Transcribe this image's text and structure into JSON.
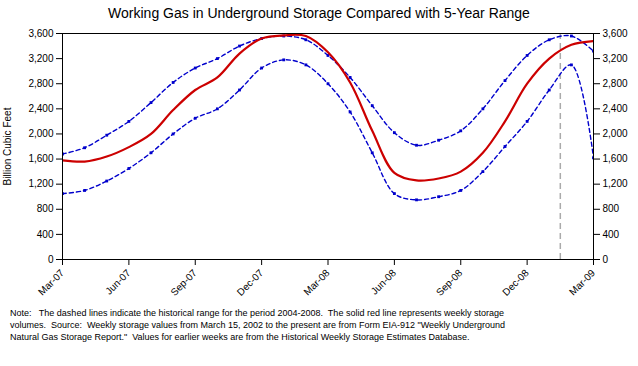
{
  "chart_data": {
    "type": "line",
    "title": "Working Gas in Underground Storage Compared with 5-Year Range",
    "y_label": "Billion Cubic Feet",
    "x": [
      0,
      1,
      2,
      3,
      4,
      5,
      6,
      7,
      8,
      9,
      10,
      11,
      12,
      13,
      14,
      15,
      16,
      17,
      18,
      19,
      20,
      21,
      22,
      23,
      24
    ],
    "xlim": [
      0,
      24
    ],
    "xticks": [
      {
        "value": 0,
        "label": "Mar-07"
      },
      {
        "value": 3,
        "label": "Jun-07"
      },
      {
        "value": 6,
        "label": "Sep-07"
      },
      {
        "value": 9,
        "label": "Dec-07"
      },
      {
        "value": 12,
        "label": "Mar-08"
      },
      {
        "value": 15,
        "label": "Jun-08"
      },
      {
        "value": 18,
        "label": "Sep-08"
      },
      {
        "value": 21,
        "label": "Dec-08"
      },
      {
        "value": 24,
        "label": "Mar-09"
      }
    ],
    "ylim": [
      0,
      3600
    ],
    "yticks": [
      0,
      400,
      800,
      {
        "value": 1200,
        "label": "1,200"
      },
      {
        "value": 1600,
        "label": "1,600"
      },
      {
        "value": 2000,
        "label": "2,000"
      },
      {
        "value": 2400,
        "label": "2,400"
      },
      {
        "value": 2800,
        "label": "2,800"
      },
      {
        "value": 3200,
        "label": "3,200"
      },
      {
        "value": 3600,
        "label": "3,600"
      }
    ],
    "y2lim": [
      0,
      3600
    ],
    "y2ticks": [
      0,
      400,
      800,
      {
        "value": 1200,
        "label": "1,200"
      },
      {
        "value": 1600,
        "label": "1,600"
      },
      {
        "value": 2000,
        "label": "2,000"
      },
      {
        "value": 2400,
        "label": "2,400"
      },
      {
        "value": 2800,
        "label": "2,800"
      },
      {
        "value": 3200,
        "label": "3,200"
      },
      {
        "value": 3600,
        "label": "3,600"
      }
    ],
    "grid": false,
    "series": [
      {
        "color": "#0000cc",
        "line_style": "dashed",
        "marker": "square",
        "values": [
          1680,
          1780,
          1980,
          2200,
          2500,
          2820,
          3050,
          3200,
          3400,
          3520,
          3560,
          3500,
          3250,
          2900,
          2450,
          2020,
          1820,
          1900,
          2050,
          2400,
          2850,
          3250,
          3500,
          3560,
          3320
        ]
      },
      {
        "color": "#0000cc",
        "line_style": "dashed",
        "marker": "square",
        "values": [
          1050,
          1100,
          1250,
          1450,
          1700,
          2000,
          2250,
          2400,
          2700,
          3050,
          3180,
          3100,
          2800,
          2350,
          1700,
          1050,
          950,
          1000,
          1100,
          1400,
          1800,
          2200,
          2700,
          3100,
          1620
        ]
      },
      {
        "color": "#cc0000",
        "line_style": "solid",
        "values": [
          1580,
          1560,
          1640,
          1790,
          2000,
          2380,
          2700,
          2900,
          3280,
          3520,
          3570,
          3560,
          3300,
          2820,
          2050,
          1380,
          1260,
          1290,
          1400,
          1700,
          2200,
          2800,
          3200,
          3420,
          3480
        ]
      }
    ],
    "vlines": [
      {
        "x": 22.5,
        "color": "#aaaaaa",
        "line_style": "dashed"
      }
    ],
    "note": "Note:   The dashed lines indicate the historical range for the period 2004-2008.  The solid red line represents weekly storage\nvolumes.  Source:  Weekly storage values from March 15, 2002 to the present are from Form EIA-912 \"Weekly Underground\nNatural Gas Storage Report.\"  Values for earlier weeks are from the Historical Weekly Storage Estimates Database."
  }
}
